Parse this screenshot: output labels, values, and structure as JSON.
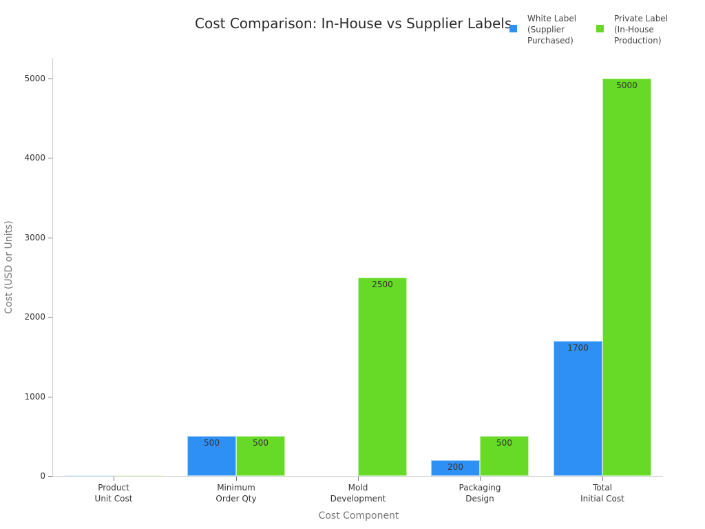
{
  "chart_data": {
    "type": "bar",
    "title": "Cost Comparison: In-House vs Supplier Labels",
    "xlabel": "Cost Component",
    "ylabel": "Cost (USD or Units)",
    "ylim": [
      0,
      5250
    ],
    "yticks": [
      0,
      1000,
      2000,
      3000,
      4000,
      5000
    ],
    "grid": false,
    "legend_position": "top-right",
    "categories": [
      "Product Unit Cost",
      "Minimum Order Qty",
      "Mold Development",
      "Packaging Design",
      "Total Initial Cost"
    ],
    "category_lines": [
      [
        "Product",
        "Unit Cost"
      ],
      [
        "Minimum",
        "Order Qty"
      ],
      [
        "Mold",
        "Development"
      ],
      [
        "Packaging",
        "Design"
      ],
      [
        "Total",
        "Initial Cost"
      ]
    ],
    "series": [
      {
        "name": "White Label (Supplier Purchased)",
        "legend_lines": [
          "White Label",
          "(Supplier",
          "Purchased)"
        ],
        "color": "#2e8ff5",
        "values": [
          5,
          500,
          0,
          200,
          1700
        ],
        "labels": [
          "",
          "500",
          "",
          "200",
          "1700"
        ]
      },
      {
        "name": "Private Label (In-House Production)",
        "legend_lines": [
          "Private Label",
          "(In-House",
          "Production)"
        ],
        "color": "#66da26",
        "values": [
          10,
          500,
          2500,
          500,
          5000
        ],
        "labels": [
          "",
          "500",
          "2500",
          "500",
          "5000"
        ]
      }
    ]
  }
}
